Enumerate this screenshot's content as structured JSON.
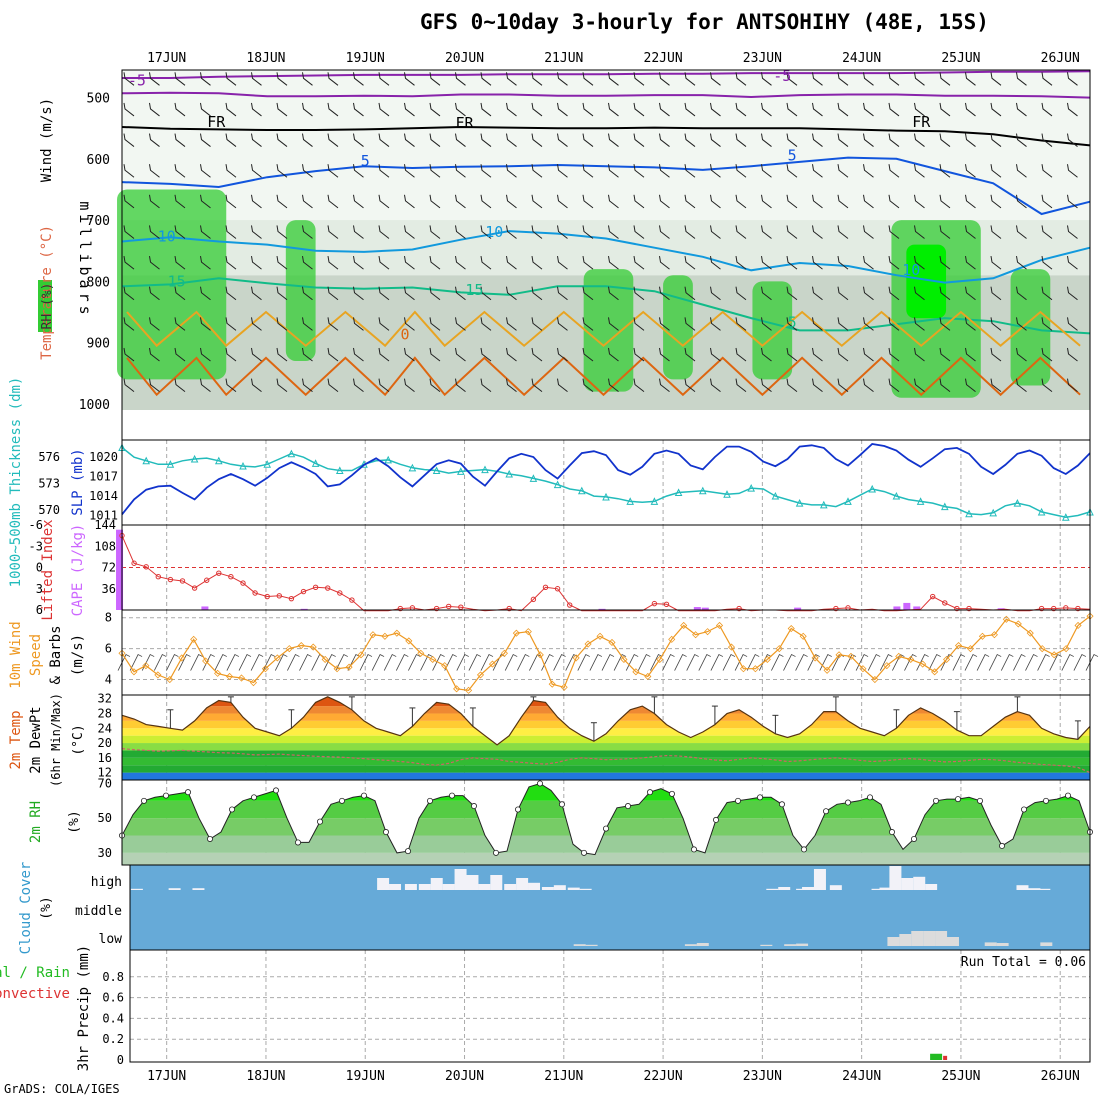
{
  "title": "GFS 0~10day 3-hourly for ANTSOHIHY (48E, 15S)",
  "credit": "GrADS: COLA/IGES",
  "dates": [
    "17JUN",
    "18JUN",
    "19JUN",
    "20JUN",
    "21JUN",
    "22JUN",
    "23JUN",
    "24JUN",
    "25JUN",
    "26JUN"
  ],
  "colors": {
    "rh_green": "#33cc33",
    "rh_bright": "#00ee00",
    "thickness": "#22bbbb",
    "slp": "#1133cc",
    "li": "#dd3333",
    "cape": "#cc66ff",
    "wind": "#ee9922",
    "temp_fill": "#ee8833",
    "cloud_bg": "#66aad8",
    "precip_total": "#22bb22",
    "precip_conv": "#dd3333"
  },
  "chart_data": [
    {
      "type": "heatmap",
      "name": "upper",
      "ylabel": "millibars",
      "legend_labels": [
        "Wind (m/s)",
        "Temperature (°C)",
        "RH (%)"
      ],
      "y_ticks": [
        500,
        600,
        700,
        800,
        900,
        1000
      ],
      "ylim": [
        455,
        1010
      ],
      "contour_labels": [
        "-5",
        "-5",
        "FR",
        "FR",
        "FR",
        "5",
        "5",
        "10",
        "10",
        "10",
        "15",
        "15",
        "5",
        "0"
      ],
      "isotherms": [
        {
          "label": "-5",
          "level": [
            468,
            468,
            466,
            465,
            464,
            463,
            463,
            463,
            462,
            462,
            462,
            461,
            461,
            460,
            460,
            460,
            460,
            459,
            458,
            458,
            457
          ]
        },
        {
          "label": "-5b",
          "level": [
            493,
            492,
            493,
            498,
            498,
            497,
            498,
            495,
            495,
            497,
            497,
            496,
            496,
            499,
            496,
            495,
            495,
            497,
            497,
            498,
            500
          ]
        },
        {
          "label": "FR",
          "level": [
            548,
            551,
            552,
            553,
            553,
            552,
            550,
            548,
            549,
            550,
            550,
            549,
            550,
            550,
            550,
            552,
            554,
            555,
            560,
            570,
            578
          ]
        },
        {
          "label": "5",
          "level": [
            638,
            641,
            646,
            630,
            620,
            612,
            615,
            613,
            612,
            610,
            612,
            614,
            618,
            612,
            605,
            598,
            600,
            620,
            640,
            690,
            670
          ]
        },
        {
          "label": "10",
          "level": [
            735,
            728,
            735,
            740,
            750,
            752,
            748,
            732,
            718,
            722,
            730,
            745,
            760,
            782,
            770,
            775,
            790,
            802,
            795,
            765,
            745
          ]
        },
        {
          "label": "15",
          "level": [
            808,
            805,
            795,
            803,
            810,
            812,
            810,
            818,
            822,
            808,
            808,
            816,
            838,
            860,
            880,
            880,
            870,
            860,
            865,
            880,
            885
          ]
        }
      ],
      "rh_humid_regions": [
        {
          "x": [
            16.5,
            17.6
          ],
          "top": 650,
          "bottom": 960
        },
        {
          "x": [
            18.2,
            18.5
          ],
          "top": 700,
          "bottom": 930
        },
        {
          "x": [
            21.2,
            21.7
          ],
          "top": 780,
          "bottom": 980
        },
        {
          "x": [
            22.0,
            22.3
          ],
          "top": 790,
          "bottom": 960
        },
        {
          "x": [
            22.9,
            23.3
          ],
          "top": 800,
          "bottom": 960
        },
        {
          "x": [
            24.3,
            25.2
          ],
          "top": 700,
          "bottom": 990
        },
        {
          "x": [
            25.5,
            25.9
          ],
          "top": 780,
          "bottom": 970
        }
      ]
    },
    {
      "type": "line",
      "name": "thickness_slp",
      "ylabel_left": "1000~500mb Thickness (dm)",
      "ylabel_right": "SLP (mb)",
      "left_ticks": [
        570,
        573,
        576
      ],
      "right_ticks": [
        1011,
        1014,
        1017,
        1020
      ],
      "ylim_left": [
        569,
        577.5
      ],
      "ylim_right": [
        1010.5,
        1022
      ],
      "series": [
        {
          "name": "Thickness",
          "values": [
            577.1,
            576,
            575.6,
            575.2,
            575.2,
            575.6,
            575.8,
            575.9,
            575.6,
            575.2,
            575.0,
            574.9,
            575.2,
            575.8,
            576.4,
            576.0,
            575.3,
            574.7,
            574.5,
            574.5,
            575.2,
            575.6,
            575.7,
            575.2,
            574.8,
            574.6,
            574.5,
            574.2,
            574.4,
            574.5,
            574.6,
            574.4,
            574.1,
            573.9,
            573.6,
            573.3,
            572.9,
            572.4,
            572.2,
            571.6,
            571.5,
            571.3,
            571.0,
            570.9,
            571.0,
            571.6,
            572.0,
            572.1,
            572.2,
            572.0,
            571.8,
            571.9,
            572.5,
            572.4,
            571.6,
            571.2,
            570.8,
            570.6,
            570.6,
            570.4,
            571.0,
            571.7,
            572.4,
            572.1,
            571.6,
            571.2,
            571.0,
            570.8,
            570.4,
            570.2,
            569.6,
            569.5,
            569.7,
            570.5,
            570.8,
            570.5,
            569.8,
            569.5,
            569.2,
            569.4,
            569.8
          ]
        },
        {
          "name": "SLP",
          "values": [
            1011.2,
            1013.5,
            1015.0,
            1015.5,
            1015.6,
            1014.5,
            1013.5,
            1015.3,
            1016.6,
            1017.4,
            1016.6,
            1015.6,
            1016.8,
            1018.3,
            1019.2,
            1018.4,
            1017.4,
            1015.5,
            1015.8,
            1017.2,
            1018.8,
            1019.8,
            1018.6,
            1016.9,
            1015.5,
            1017.2,
            1018.9,
            1019.5,
            1019.0,
            1017.0,
            1015.6,
            1017.8,
            1019.8,
            1020.5,
            1020.0,
            1018.0,
            1016.7,
            1018.7,
            1020.6,
            1020.9,
            1020.3,
            1018.0,
            1017.3,
            1018.5,
            1020.5,
            1021.0,
            1020.5,
            1018.7,
            1018.1,
            1020.0,
            1021.6,
            1021.6,
            1020.8,
            1019.3,
            1018.6,
            1019.7,
            1021.6,
            1021.8,
            1021.4,
            1019.7,
            1018.7,
            1020.3,
            1022.0,
            1021.7,
            1021.0,
            1019.6,
            1018.5,
            1019.8,
            1021.2,
            1021.4,
            1020.5,
            1018.5,
            1017.4,
            1018.8,
            1020.5,
            1021.0,
            1020.2,
            1018.3,
            1017.4,
            1018.7,
            1020.6
          ]
        }
      ]
    },
    {
      "type": "line",
      "name": "li_cape",
      "ylabel_left": "Lifted Index",
      "ylabel_right": "CAPE (J/kg)",
      "left_ticks": [
        -6,
        -3,
        0,
        3,
        6
      ],
      "right_ticks": [
        36,
        72,
        108,
        144
      ],
      "li_values": [
        -4.5,
        -0.6,
        -0.1,
        1.3,
        1.7,
        1.9,
        2.9,
        1.8,
        0.8,
        1.3,
        2.2,
        3.6,
        4.1,
        4.0,
        4.4,
        3.4,
        2.8,
        2.9,
        3.6,
        4.6,
        6.1,
        6.1,
        6.1,
        5.8,
        5.7,
        6.0,
        5.8,
        5.5,
        5.6,
        5.9,
        6.1,
        6.0,
        5.8,
        6.1,
        4.5,
        2.8,
        3.0,
        5.3,
        6.1,
        6.1,
        6.1,
        6.1,
        6.1,
        6.1,
        5.1,
        5.2,
        6.1,
        6.1,
        6.1,
        6.1,
        5.9,
        5.8,
        6.1,
        6.0,
        6.0,
        6.1,
        6.1,
        6.1,
        5.9,
        5.8,
        5.7,
        6.0,
        5.9,
        6.1,
        6.1,
        6.0,
        5.9,
        4.1,
        5.0,
        5.8,
        5.8,
        5.9,
        6.0,
        5.9,
        6.1,
        6.1,
        5.8,
        5.8,
        5.7,
        5.8,
        5.9
      ],
      "cape_bars": [
        {
          "x": 16.52,
          "v": 136
        },
        {
          "x": 17.38,
          "v": 6
        },
        {
          "x": 18.38,
          "v": 2
        },
        {
          "x": 21.38,
          "v": 2
        },
        {
          "x": 22.34,
          "v": 5
        },
        {
          "x": 22.42,
          "v": 4
        },
        {
          "x": 23.35,
          "v": 4
        },
        {
          "x": 24.35,
          "v": 6
        },
        {
          "x": 24.45,
          "v": 12
        },
        {
          "x": 24.55,
          "v": 6
        },
        {
          "x": 25.4,
          "v": 3
        }
      ]
    },
    {
      "type": "line",
      "name": "wind10m",
      "ylabel_left": "10m Wind Speed & Barbs",
      "ylabel_right": "(m/s)",
      "y_ticks": [
        4,
        6,
        8
      ],
      "ylim": [
        3,
        8.5
      ],
      "values": [
        5.7,
        4.5,
        4.9,
        4.3,
        4.0,
        5.4,
        6.6,
        5.2,
        4.4,
        4.2,
        4.1,
        3.8,
        4.7,
        5.4,
        6.0,
        6.2,
        6.1,
        5.3,
        4.7,
        4.8,
        5.6,
        6.9,
        6.8,
        7.0,
        6.5,
        5.7,
        5.3,
        4.9,
        3.4,
        3.3,
        4.3,
        5.0,
        5.7,
        7.0,
        7.1,
        5.6,
        3.7,
        3.5,
        5.4,
        6.3,
        6.8,
        6.4,
        5.3,
        4.5,
        4.2,
        5.3,
        6.6,
        7.5,
        6.9,
        7.1,
        7.5,
        6.1,
        4.7,
        4.7,
        5.3,
        6.0,
        7.3,
        6.8,
        5.4,
        4.6,
        5.6,
        5.5,
        4.7,
        4.0,
        4.9,
        5.5,
        5.3,
        5.0,
        4.5,
        5.3,
        6.2,
        6.0,
        6.8,
        6.9,
        7.9,
        7.6,
        7.0,
        6.0,
        5.6,
        6.0,
        7.5,
        8.1
      ]
    },
    {
      "type": "area",
      "name": "temp2m",
      "ylabel": "2m Temp 2m DewPt (6hr Min/Max)",
      "yunit": "(°C)",
      "y_ticks": [
        12,
        16,
        20,
        24,
        28,
        32
      ],
      "ylim": [
        10,
        33
      ],
      "temp_values": [
        27.5,
        26.5,
        25.0,
        24.5,
        24.0,
        23.5,
        26.0,
        29.5,
        31.5,
        31.0,
        27.0,
        24.0,
        23.0,
        22.0,
        24.0,
        27.0,
        31.0,
        32.5,
        31.0,
        29.0,
        26.0,
        24.0,
        23.0,
        22.0,
        24.5,
        28.0,
        31.0,
        30.5,
        28.0,
        24.5,
        22.0,
        19.5,
        22.0,
        27.0,
        31.5,
        31.0,
        27.0,
        24.0,
        22.0,
        20.5,
        22.5,
        26.0,
        29.0,
        30.0,
        28.0,
        25.0,
        23.0,
        21.5,
        23.0,
        25.0,
        28.0,
        29.0,
        27.0,
        24.5,
        22.5,
        21.5,
        22.5,
        25.0,
        28.5,
        28.5,
        26.0,
        24.0,
        23.0,
        22.0,
        24.0,
        27.5,
        29.5,
        28.0,
        26.0,
        23.5,
        22.0,
        22.0,
        24.5,
        27.0,
        28.5,
        27.5,
        24.0,
        22.5,
        21.5,
        21.0,
        24.5
      ],
      "dewpt_values": [
        18.5,
        18.2,
        18.0,
        17.8,
        17.9,
        18.0,
        17.8,
        17.6,
        17.4,
        17.3,
        17.1,
        16.8,
        16.9,
        17.0,
        16.8,
        16.6,
        16.4,
        16.3,
        16.2,
        16.0,
        15.8,
        15.5,
        15.3,
        15.0,
        14.7,
        14.2,
        14.0,
        14.5,
        15.5,
        16.0,
        15.8,
        15.6,
        15.0,
        14.8,
        14.5,
        14.3,
        14.8,
        15.6,
        16.0,
        15.8,
        15.5,
        15.6,
        15.8,
        16.0,
        16.3,
        16.6,
        16.5,
        16.2,
        15.8,
        15.4,
        15.2,
        15.6,
        16.0,
        15.8,
        15.4,
        15.0,
        15.2,
        15.5,
        15.8,
        16.0,
        15.7,
        15.3,
        15.0,
        15.2,
        15.5,
        15.8,
        15.6,
        15.2,
        14.9,
        15.0,
        15.3,
        15.6,
        15.5,
        15.2,
        14.8,
        14.5,
        14.2,
        14.0,
        13.8,
        13.4,
        12.0
      ]
    },
    {
      "type": "area",
      "name": "rh2m",
      "ylabel": "2m RH",
      "yunit": "(%)",
      "y_ticks": [
        30,
        50,
        70
      ],
      "ylim": [
        23,
        72
      ],
      "values": [
        40,
        52,
        60,
        62,
        63,
        64,
        65,
        50,
        38,
        42,
        55,
        60,
        62,
        64,
        66,
        50,
        36,
        36,
        48,
        58,
        60,
        62,
        63,
        60,
        42,
        30,
        31,
        50,
        60,
        62,
        63,
        63,
        57,
        40,
        30,
        31,
        55,
        68,
        70,
        66,
        58,
        35,
        30,
        29,
        44,
        56,
        57,
        58,
        65,
        67,
        64,
        50,
        32,
        30,
        49,
        59,
        60,
        61,
        62,
        62,
        58,
        40,
        32,
        40,
        54,
        58,
        59,
        60,
        62,
        58,
        42,
        32,
        38,
        52,
        60,
        61,
        61,
        62,
        60,
        46,
        34,
        38,
        55,
        59,
        60,
        61,
        63,
        60,
        42
      ]
    },
    {
      "type": "bar",
      "name": "cloud",
      "ylabel": "Cloud Cover",
      "yunit": "(%)",
      "levels": [
        "high",
        "middle",
        "low"
      ],
      "high": [
        {
          "x": 16.7,
          "v": 2
        },
        {
          "x": 17.08,
          "v": 3
        },
        {
          "x": 17.32,
          "v": 3
        },
        {
          "x": 19.18,
          "v": 20
        },
        {
          "x": 19.3,
          "v": 10
        },
        {
          "x": 19.46,
          "v": 10
        },
        {
          "x": 19.6,
          "v": 10
        },
        {
          "x": 19.72,
          "v": 20
        },
        {
          "x": 19.84,
          "v": 10
        },
        {
          "x": 19.96,
          "v": 35
        },
        {
          "x": 20.08,
          "v": 25
        },
        {
          "x": 20.2,
          "v": 10
        },
        {
          "x": 20.32,
          "v": 25
        },
        {
          "x": 20.46,
          "v": 10
        },
        {
          "x": 20.58,
          "v": 20
        },
        {
          "x": 20.7,
          "v": 12
        },
        {
          "x": 20.84,
          "v": 5
        },
        {
          "x": 20.96,
          "v": 8
        },
        {
          "x": 21.1,
          "v": 4
        },
        {
          "x": 21.22,
          "v": 2
        },
        {
          "x": 23.1,
          "v": 2
        },
        {
          "x": 23.22,
          "v": 5
        },
        {
          "x": 23.4,
          "v": 2
        },
        {
          "x": 23.46,
          "v": 5
        },
        {
          "x": 23.58,
          "v": 35
        },
        {
          "x": 23.74,
          "v": 8
        },
        {
          "x": 24.16,
          "v": 2
        },
        {
          "x": 24.24,
          "v": 4
        },
        {
          "x": 24.34,
          "v": 40
        },
        {
          "x": 24.46,
          "v": 20
        },
        {
          "x": 24.58,
          "v": 22
        },
        {
          "x": 24.7,
          "v": 10
        },
        {
          "x": 25.62,
          "v": 8
        },
        {
          "x": 25.74,
          "v": 3
        },
        {
          "x": 25.84,
          "v": 2
        }
      ],
      "low": [
        {
          "x": 21.16,
          "v": 3
        },
        {
          "x": 21.28,
          "v": 2
        },
        {
          "x": 22.28,
          "v": 3
        },
        {
          "x": 22.4,
          "v": 5
        },
        {
          "x": 23.04,
          "v": 2
        },
        {
          "x": 23.28,
          "v": 3
        },
        {
          "x": 23.4,
          "v": 4
        },
        {
          "x": 24.32,
          "v": 15
        },
        {
          "x": 24.44,
          "v": 20
        },
        {
          "x": 24.56,
          "v": 25
        },
        {
          "x": 24.68,
          "v": 25
        },
        {
          "x": 24.8,
          "v": 25
        },
        {
          "x": 24.92,
          "v": 15
        },
        {
          "x": 25.3,
          "v": 6
        },
        {
          "x": 25.42,
          "v": 5
        },
        {
          "x": 25.86,
          "v": 6
        }
      ]
    },
    {
      "type": "bar",
      "name": "precip",
      "ylabel": "3hr Precip (mm)",
      "legend_labels": [
        "Total / Rain",
        "Convective"
      ],
      "y_ticks": [
        0,
        0.2,
        0.4,
        0.6,
        0.8
      ],
      "ylim": [
        0,
        1.0
      ],
      "run_total_text": "Run Total = 0.06",
      "bars": [
        {
          "x": 24.75,
          "total": 0.06,
          "conv": 0.04
        }
      ]
    }
  ]
}
